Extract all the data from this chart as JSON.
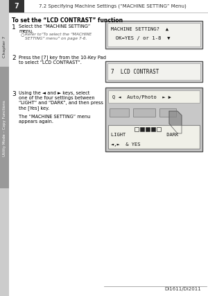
{
  "bg_color": "#f0f0f0",
  "page_bg": "#ffffff",
  "header_text": "7.2 Specifying Machine Settings (“MACHINE SETTING” Menu)",
  "chapter_num": "7",
  "chapter_label": "Chapter 7",
  "side_label": "Utility Mode – Copy Functions",
  "title": "To set the “LCD CONTRAST” function",
  "step1_main": "Select the “MACHINE SETTING”\nmenu.",
  "step1_sub": "Refer to“To select the “MACHINE\nSETTING” menu” on page 7-6.",
  "step2_main": "Press the [7] key from the 10-Key Pad\nto select “LCD CONTRAST”.",
  "step3_main": "Using the ◄ and ► keys, select\none of the four settings between\n“LIGHT” and “DARK”, and then press\nthe [Yes] key.",
  "step3_sub": "The “MACHINE SETTING” menu\nappears again.",
  "footer": "Di1611/Di2011",
  "screen1_line1": "MACHINE SETTING?  ▲",
  "screen1_line2": "  OK=YES / or 1-8  ▼",
  "screen2_line1": "7  LCD CONTRAST",
  "screen3_top": "Q ◄  Auto/Photo  ► ▶",
  "screen3_bottom1": "LIGHT □■■■□ DARK",
  "screen3_bottom2": "◄,►  & YES"
}
